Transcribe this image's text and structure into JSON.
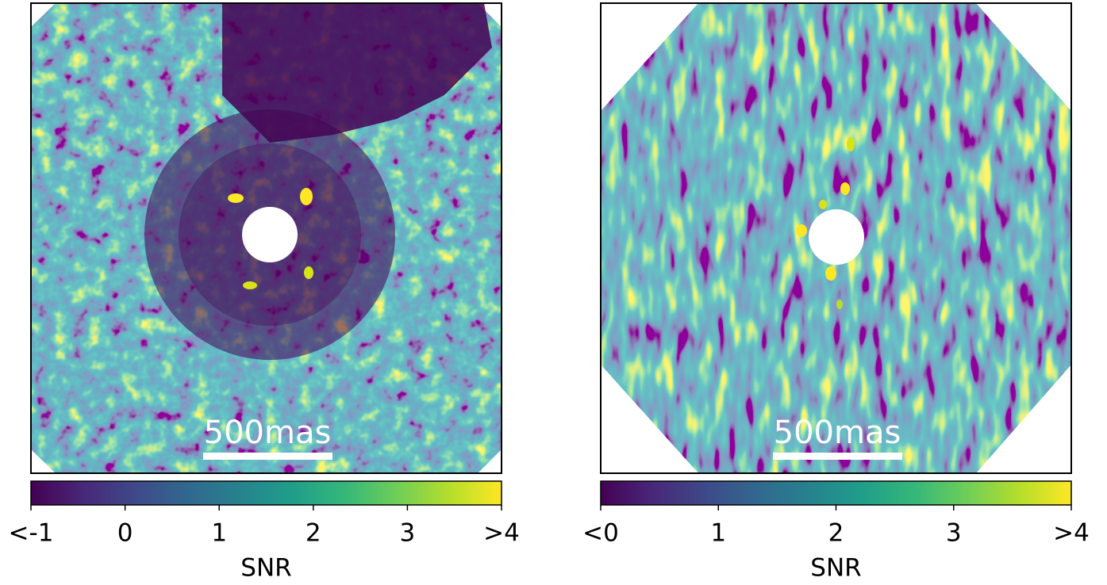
{
  "chart_data": [
    {
      "type": "colorbar",
      "xlabel": "SNR",
      "annotation": "500mas",
      "colormap": "viridis",
      "xlim": [
        -1,
        4
      ],
      "xticks": [
        {
          "value": -1,
          "label": "<-1"
        },
        0,
        1,
        2,
        3,
        {
          "value": 4,
          "label": ">4"
        }
      ]
    },
    {
      "type": "colorbar",
      "xlabel": "SNR",
      "annotation": "500mas",
      "colormap": "viridis",
      "xlim": [
        0,
        4
      ],
      "xticks": [
        {
          "value": 0,
          "label": "<0"
        },
        1,
        2,
        3,
        {
          "value": 4,
          "label": ">4"
        }
      ]
    }
  ]
}
